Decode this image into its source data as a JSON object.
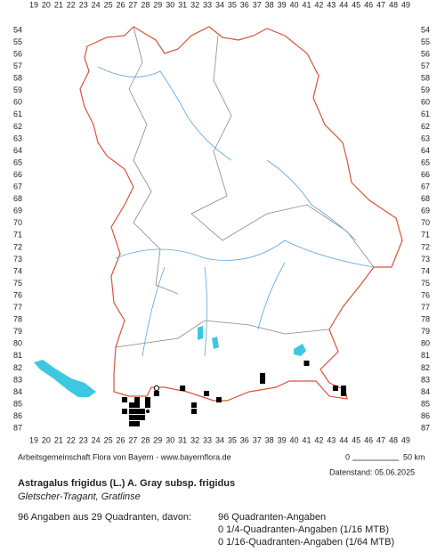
{
  "x_labels": [
    19,
    20,
    21,
    22,
    23,
    24,
    25,
    26,
    27,
    28,
    29,
    30,
    31,
    32,
    33,
    34,
    35,
    36,
    37,
    38,
    39,
    40,
    41,
    42,
    43,
    44,
    45,
    46,
    47,
    48,
    49
  ],
  "y_labels": [
    54,
    55,
    56,
    57,
    58,
    59,
    60,
    61,
    62,
    63,
    64,
    65,
    66,
    67,
    68,
    69,
    70,
    71,
    72,
    73,
    74,
    75,
    76,
    77,
    78,
    79,
    80,
    81,
    82,
    83,
    84,
    85,
    86,
    87
  ],
  "occurrences": [
    {
      "x": 41.0,
      "y": 81.6,
      "symbol": "square"
    },
    {
      "x": 37.45,
      "y": 82.63,
      "symbol": "square"
    },
    {
      "x": 37.45,
      "y": 83.08,
      "symbol": "square"
    },
    {
      "x": 43.33,
      "y": 83.67,
      "symbol": "square"
    },
    {
      "x": 43.98,
      "y": 83.67,
      "symbol": "square"
    },
    {
      "x": 43.98,
      "y": 84.11,
      "symbol": "square"
    },
    {
      "x": 31.0,
      "y": 83.67,
      "symbol": "square"
    },
    {
      "x": 32.93,
      "y": 84.11,
      "symbol": "square"
    },
    {
      "x": 28.9,
      "y": 83.67,
      "symbol": "circle"
    },
    {
      "x": 28.9,
      "y": 84.11,
      "symbol": "square"
    },
    {
      "x": 31.92,
      "y": 85.07,
      "symbol": "square"
    },
    {
      "x": 31.92,
      "y": 85.59,
      "symbol": "square"
    },
    {
      "x": 33.93,
      "y": 84.63,
      "symbol": "square"
    },
    {
      "x": 26.32,
      "y": 84.63,
      "symbol": "square"
    },
    {
      "x": 26.32,
      "y": 85.59,
      "symbol": "square"
    },
    {
      "x": 27.33,
      "y": 84.63,
      "symbol": "square"
    },
    {
      "x": 28.19,
      "y": 84.63,
      "symbol": "square"
    },
    {
      "x": 26.9,
      "y": 85.07,
      "symbol": "square"
    },
    {
      "x": 27.33,
      "y": 85.07,
      "symbol": "square"
    },
    {
      "x": 28.19,
      "y": 85.07,
      "symbol": "square"
    },
    {
      "x": 26.9,
      "y": 85.59,
      "symbol": "square"
    },
    {
      "x": 27.33,
      "y": 85.59,
      "symbol": "square"
    },
    {
      "x": 27.76,
      "y": 85.59,
      "symbol": "square"
    },
    {
      "x": 28.19,
      "y": 85.59,
      "symbol": "dot"
    },
    {
      "x": 26.9,
      "y": 86.1,
      "symbol": "square"
    },
    {
      "x": 27.33,
      "y": 86.1,
      "symbol": "square"
    },
    {
      "x": 27.76,
      "y": 86.1,
      "symbol": "square"
    },
    {
      "x": 26.9,
      "y": 86.62,
      "symbol": "square"
    },
    {
      "x": 27.33,
      "y": 86.62,
      "symbol": "square"
    }
  ],
  "credit": "Arbeitsgemeinschaft Flora von Bayern - www.bayernflora.de",
  "scale": {
    "start": "0",
    "end": "50 km"
  },
  "date": "Datenstand: 05.06.2025",
  "title": "Astragalus frigidus (L.) A. Gray subsp. frigidus",
  "subtitle": "Gletscher-Tragant, Gratlinse",
  "summary": "96 Angaben aus 29 Quadranten, davon:",
  "details": [
    "96 Quadranten-Angaben",
    "0 1/4-Quadranten-Angaben (1/16 MTB)",
    "0 1/16-Quadranten-Angaben (1/64 MTB)"
  ]
}
